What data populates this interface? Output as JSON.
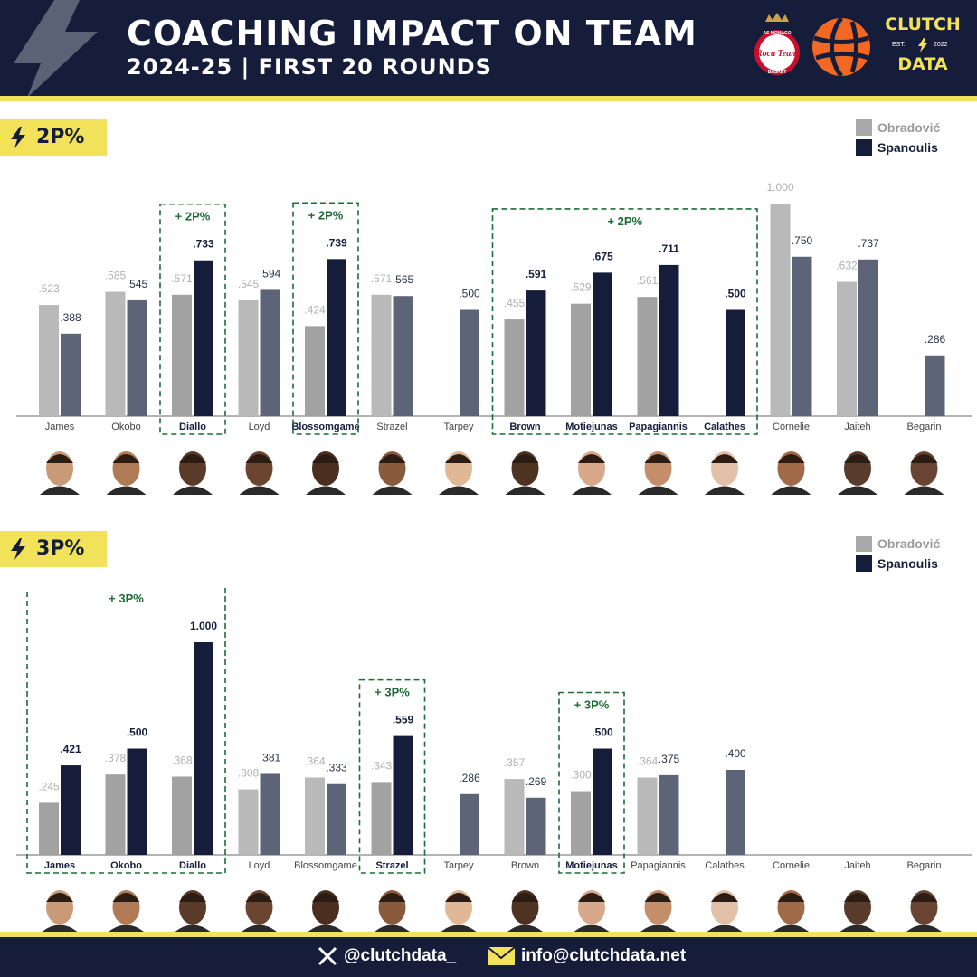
{
  "header": {
    "title": "COACHING IMPACT ON TEAM",
    "subtitle": "2024-25 | FIRST 20 ROUNDS",
    "logos": {
      "team": "Roca Team",
      "team_arc": "AS MONACO",
      "team_bottom": "BASKET",
      "league": "euroleague-ball-logo",
      "brand_top": "CLUTCH",
      "brand_est": "EST.",
      "brand_year": "2022",
      "brand_bottom": "DATA"
    }
  },
  "legend": {
    "series_a": "Obradović",
    "series_b": "Spanoulis"
  },
  "colors": {
    "navy": "#151d3b",
    "yellow": "#f2e25a",
    "obradovic_light": "#b9b9b9",
    "obradovic_dark": "#a2a2a2",
    "spanoulis_light": "#5d6478",
    "spanoulis_dark": "#151d3b",
    "highlight_green": "#1f6b35"
  },
  "sections": [
    {
      "label": "2P%"
    },
    {
      "label": "3P%"
    }
  ],
  "chart_data": [
    {
      "type": "bar",
      "title": "2P%",
      "categories": [
        "James",
        "Okobo",
        "Diallo",
        "Loyd",
        "Blossomgame",
        "Strazel",
        "Tarpey",
        "Brown",
        "Motiejunas",
        "Papagiannis",
        "Calathes",
        "Cornelie",
        "Jaiteh",
        "Begarin"
      ],
      "series": [
        {
          "name": "Obradović",
          "values": [
            0.523,
            0.585,
            0.571,
            0.545,
            0.424,
            0.571,
            null,
            0.455,
            0.529,
            0.561,
            null,
            1.0,
            0.632,
            null
          ]
        },
        {
          "name": "Spanoulis",
          "values": [
            0.388,
            0.545,
            0.733,
            0.594,
            0.739,
            0.565,
            0.5,
            0.591,
            0.675,
            0.711,
            0.5,
            0.75,
            0.737,
            0.286
          ]
        }
      ],
      "value_labels": {
        "Obradović": [
          ".523",
          ".585",
          ".571",
          ".545",
          ".424",
          ".571",
          "",
          ".455",
          ".529",
          ".561",
          "",
          "1.000",
          ".632",
          ""
        ],
        "Spanoulis": [
          ".388",
          ".545",
          ".733",
          ".594",
          ".739",
          ".565",
          ".500",
          ".591",
          ".675",
          ".711",
          ".500",
          ".750",
          ".737",
          ".286"
        ]
      },
      "highlights": [
        {
          "label": "+ 2P%",
          "from": "Diallo",
          "to": "Diallo"
        },
        {
          "label": "+ 2P%",
          "from": "Blossomgame",
          "to": "Blossomgame"
        },
        {
          "label": "+ 2P%",
          "from": "Brown",
          "to": "Calathes"
        }
      ],
      "ylim": [
        0,
        1.0
      ],
      "grid": false,
      "legend_position": "top-right"
    },
    {
      "type": "bar",
      "title": "3P%",
      "categories": [
        "James",
        "Okobo",
        "Diallo",
        "Loyd",
        "Blossomgame",
        "Strazel",
        "Tarpey",
        "Brown",
        "Motiejunas",
        "Papagiannis",
        "Calathes",
        "Cornelie",
        "Jaiteh",
        "Begarin"
      ],
      "series": [
        {
          "name": "Obradović",
          "values": [
            0.245,
            0.378,
            0.368,
            0.308,
            0.364,
            0.343,
            null,
            0.357,
            0.3,
            0.364,
            null,
            null,
            null,
            null
          ]
        },
        {
          "name": "Spanoulis",
          "values": [
            0.421,
            0.5,
            1.0,
            0.381,
            0.333,
            0.559,
            0.286,
            0.269,
            0.5,
            0.375,
            0.4,
            null,
            null,
            null
          ]
        }
      ],
      "value_labels": {
        "Obradović": [
          ".245",
          ".378",
          ".368",
          ".308",
          ".364",
          ".343",
          "",
          ".357",
          ".300",
          ".364",
          "",
          "",
          "",
          ""
        ],
        "Spanoulis": [
          ".421",
          ".500",
          "1.000",
          ".381",
          ".333",
          ".559",
          ".286",
          ".269",
          ".500",
          ".375",
          ".400",
          "",
          "",
          ""
        ]
      },
      "highlights": [
        {
          "label": "+ 3P%",
          "from": "James",
          "to": "Diallo"
        },
        {
          "label": "+ 3P%",
          "from": "Strazel",
          "to": "Strazel"
        },
        {
          "label": "+ 3P%",
          "from": "Motiejunas",
          "to": "Motiejunas"
        }
      ],
      "ylim": [
        0,
        1.0
      ],
      "grid": false,
      "legend_position": "top-right"
    }
  ],
  "footer": {
    "twitter_icon": "x-logo-icon",
    "twitter": "@clutchdata_",
    "email_icon": "envelope-icon",
    "email": "info@clutchdata.net"
  }
}
